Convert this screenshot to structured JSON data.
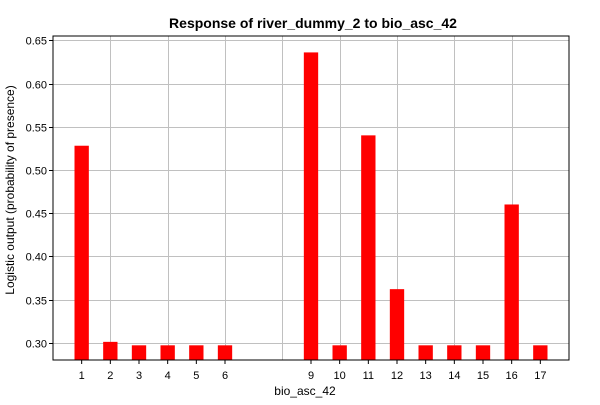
{
  "chart_data": {
    "type": "bar",
    "title": "Response of river_dummy_2 to bio_asc_42",
    "xlabel": "bio_asc_42",
    "ylabel": "Logistic output (probability of presence)",
    "x": [
      1,
      2,
      3,
      4,
      5,
      6,
      9,
      10,
      11,
      12,
      13,
      14,
      15,
      16,
      17
    ],
    "values": [
      0.528,
      0.301,
      0.297,
      0.297,
      0.297,
      0.297,
      0.636,
      0.297,
      0.54,
      0.362,
      0.297,
      0.297,
      0.297,
      0.46,
      0.297
    ],
    "x_ticks": [
      1,
      2,
      3,
      4,
      5,
      6,
      9,
      10,
      11,
      12,
      13,
      14,
      15,
      16,
      17
    ],
    "y_ticks": [
      "0.30",
      "0.35",
      "0.40",
      "0.45",
      "0.50",
      "0.55",
      "0.60",
      "0.65"
    ],
    "xlim": [
      0,
      18
    ],
    "ylim": [
      0.28,
      0.655
    ],
    "grid": true,
    "legend": "none",
    "colors": {
      "bar": "#ff0000",
      "grid": "#c0c0c0",
      "axis": "#000000"
    }
  }
}
